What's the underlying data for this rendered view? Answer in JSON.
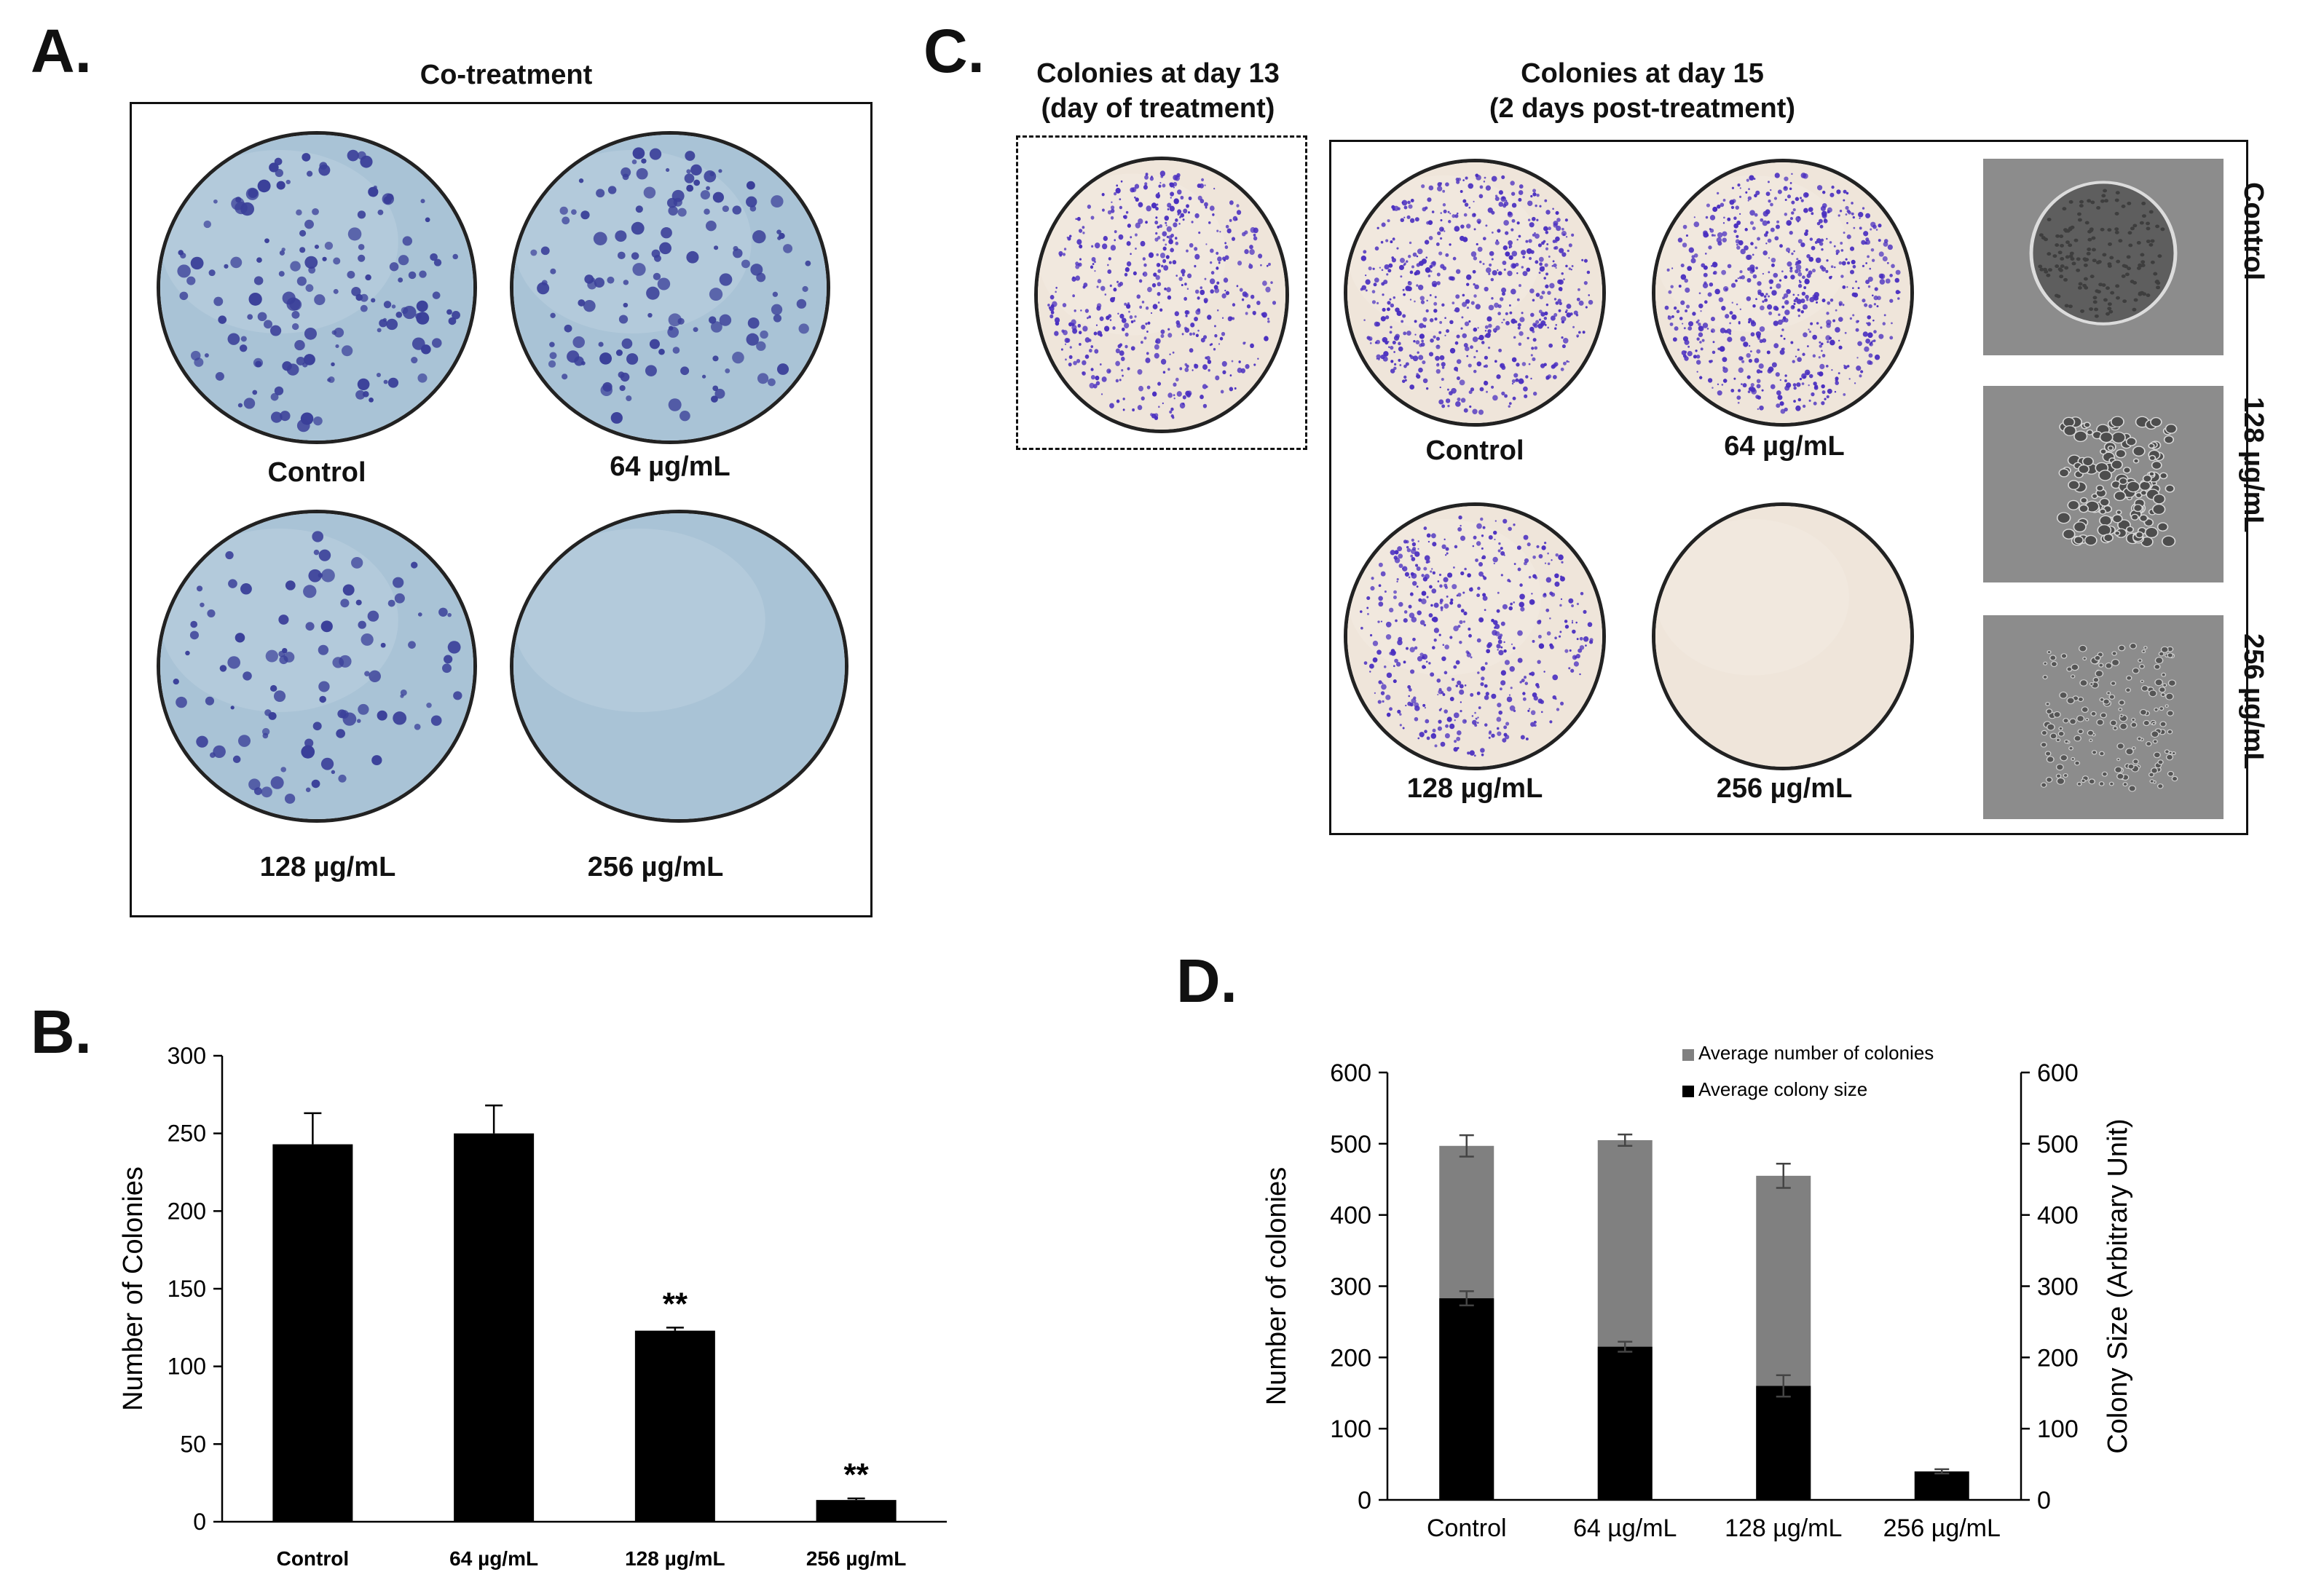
{
  "panel_a": {
    "letter": "A.",
    "title": "Co-treatment",
    "dish_labels": [
      "Control",
      "64 µg/mL",
      "128 µg/mL",
      "256 µg/mL"
    ],
    "colony_density": [
      0.85,
      0.8,
      0.55,
      0.0
    ],
    "colors": {
      "dish": "#a9c3d6",
      "colony": "#3a3f99"
    }
  },
  "panel_c": {
    "letter": "C.",
    "day13_title_line1": "Colonies at day 13",
    "day13_title_line2": "(day of treatment)",
    "day15_title_line1": "Colonies at day 15",
    "day15_title_line2": "(2 days post-treatment)",
    "dish_labels": [
      "Control",
      "64 µg/mL",
      "128 µg/mL",
      "256 µg/mL"
    ],
    "colony_density": [
      0.9,
      0.95,
      0.7,
      0.0
    ],
    "micro_labels": [
      "Control",
      "128 µg/mL",
      "256 µg/mL"
    ],
    "colors": {
      "dish": "#efe5da",
      "colony": "#4a2fc0"
    }
  },
  "panel_b": {
    "letter": "B.",
    "chart_data": {
      "type": "bar",
      "categories": [
        "Control",
        "64 µg/mL",
        "128 µg/mL",
        "256 µg/mL"
      ],
      "values": [
        243,
        250,
        123,
        14
      ],
      "errors": [
        20,
        18,
        2,
        1
      ],
      "annotations": [
        "",
        "",
        "**",
        "**"
      ],
      "xlabel": "",
      "ylabel": "Number of Colonies",
      "ylim": [
        0,
        300
      ],
      "yticks": [
        0,
        50,
        100,
        150,
        200,
        250,
        300
      ],
      "grid": false,
      "bar_color": "#000000"
    }
  },
  "panel_d": {
    "letter": "D.",
    "chart_data": {
      "type": "bar",
      "stacked": false,
      "categories": [
        "Control",
        "64 µg/mL",
        "128 µg/mL",
        "256 µg/mL"
      ],
      "series": [
        {
          "name": "Average number of colonies",
          "values": [
            497,
            505,
            455,
            0
          ],
          "errors": [
            15,
            8,
            17,
            0
          ],
          "color": "#808080"
        },
        {
          "name": "Average colony size",
          "values": [
            283,
            215,
            160,
            40
          ],
          "errors": [
            10,
            7,
            15,
            3
          ],
          "color": "#000000"
        }
      ],
      "ylabel": "Number of colonies",
      "y2label": "Colony Size (Arbitrary Unit)",
      "ylim": [
        0,
        600
      ],
      "y2lim": [
        0,
        600
      ],
      "yticks": [
        0,
        100,
        200,
        300,
        400,
        500,
        600
      ],
      "legend_position": "top-center",
      "grid": false
    }
  }
}
